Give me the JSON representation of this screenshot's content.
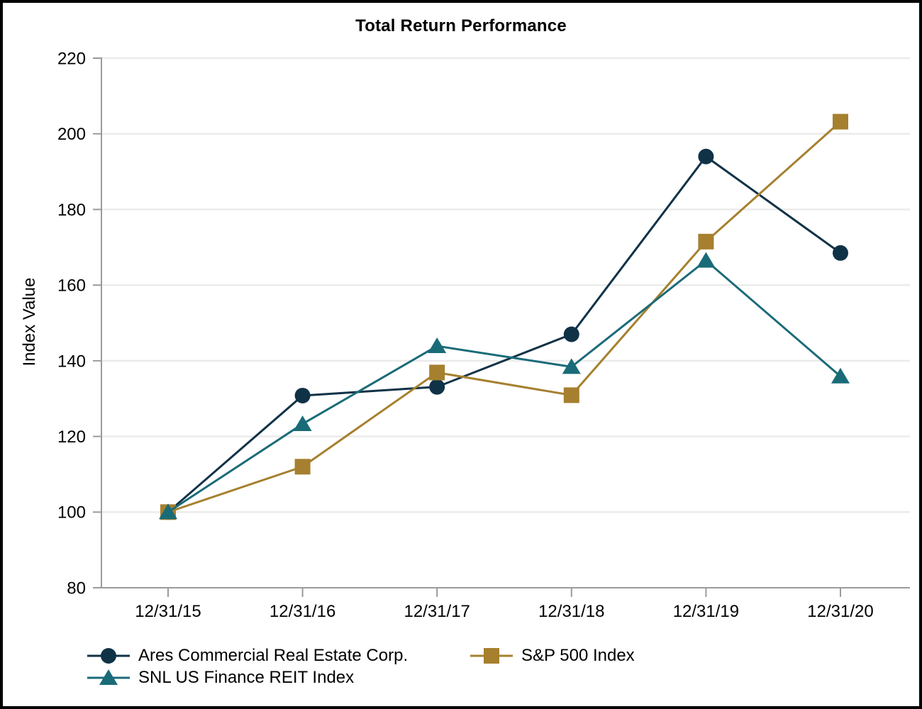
{
  "chart_data": {
    "type": "line",
    "title": "Total Return Performance",
    "ylabel": "Index Value",
    "xlabel": "",
    "categories": [
      "12/31/15",
      "12/31/16",
      "12/31/17",
      "12/31/18",
      "12/31/19",
      "12/31/20"
    ],
    "series": [
      {
        "name": "Ares Commercial Real Estate Corp.",
        "marker": "circle",
        "color": "#103247",
        "values": [
          100,
          130.8,
          133.1,
          147.0,
          194.0,
          168.5
        ]
      },
      {
        "name": "S&P 500 Index",
        "marker": "square",
        "color": "#A6802F",
        "values": [
          100,
          112.0,
          136.9,
          130.9,
          171.5,
          203.2
        ]
      },
      {
        "name": "SNL US Finance REIT Index",
        "marker": "triangle",
        "color": "#1A6B78",
        "values": [
          100,
          123.3,
          143.9,
          138.4,
          166.5,
          135.9
        ]
      }
    ],
    "ylim": [
      80,
      220
    ],
    "yticks": [
      80,
      100,
      120,
      140,
      160,
      180,
      200,
      220
    ],
    "grid": true,
    "legend_position": "bottom-left"
  },
  "styles": {
    "grid_color": "#EBEBEB",
    "axis_color": "#9B9B9B",
    "text_color": "#000000",
    "frame_color": "#000000",
    "background": "#FFFFFF"
  }
}
